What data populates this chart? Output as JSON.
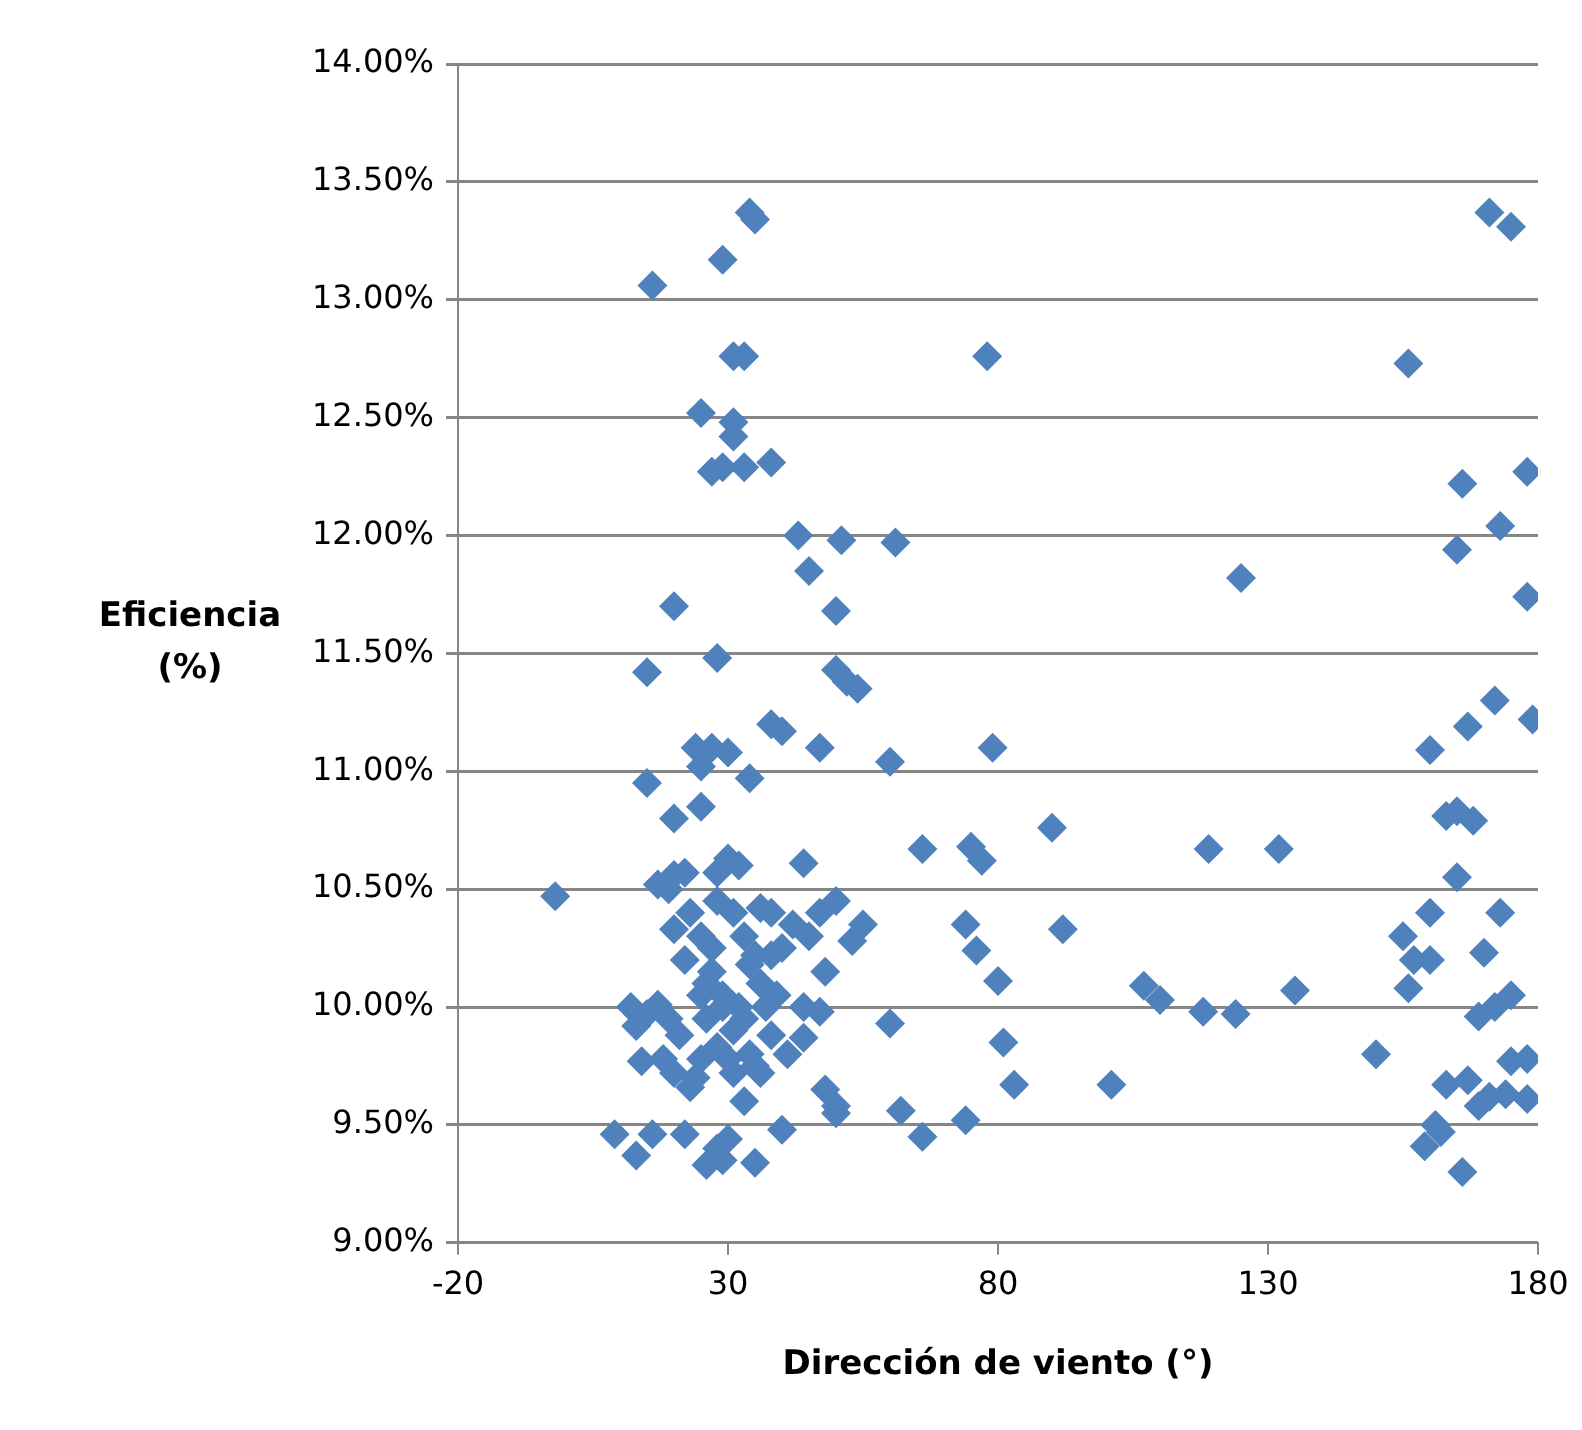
{
  "chart_data": {
    "type": "scatter",
    "xlabel": "Dirección de viento (°)",
    "ylabel": "Eficiencia (%)",
    "xlim": [
      -20,
      180
    ],
    "xticks": [
      -20,
      30,
      80,
      130,
      180
    ],
    "ylim": [
      9,
      14
    ],
    "yticks": [
      {
        "value": 9,
        "label": "9.00%"
      },
      {
        "value": 9.5,
        "label": "9.50%"
      },
      {
        "value": 10,
        "label": "10.00%"
      },
      {
        "value": 10.5,
        "label": "10.50%"
      },
      {
        "value": 11,
        "label": "11.00%"
      },
      {
        "value": 11.5,
        "label": "11.50%"
      },
      {
        "value": 12,
        "label": "12.00%"
      },
      {
        "value": 12.5,
        "label": "12.50%"
      },
      {
        "value": 13,
        "label": "13.00%"
      },
      {
        "value": 13.5,
        "label": "13.50%"
      },
      {
        "value": 14,
        "label": "14.00%"
      }
    ],
    "grid": "y",
    "marker": "diamond",
    "legend": false,
    "series": [
      {
        "color": "#4f81bd",
        "x": [
          78,
          125,
          156,
          171,
          175,
          166,
          178,
          165,
          173,
          178,
          172,
          179,
          167,
          160,
          163,
          165,
          168,
          165,
          160,
          173,
          170,
          160,
          155,
          157,
          156,
          175,
          172,
          169,
          150,
          163,
          167,
          171,
          169,
          175,
          178,
          178,
          174,
          161,
          162,
          159,
          166,
          79,
          60,
          61,
          51,
          45,
          43,
          50,
          50,
          52,
          54,
          47,
          38,
          40,
          66,
          75,
          77,
          74,
          76,
          80,
          90,
          92,
          119,
          132,
          81,
          83,
          60,
          62,
          66,
          74,
          101,
          107,
          110,
          118,
          124,
          135,
          44,
          55,
          53,
          50,
          47,
          45,
          48,
          42,
          40,
          38,
          48,
          50,
          50,
          44,
          40,
          35,
          -2,
          16,
          29,
          34,
          35,
          31,
          33,
          25,
          31,
          31,
          27,
          29,
          33,
          38,
          20,
          15,
          28,
          15,
          27,
          30,
          34,
          24,
          25,
          25,
          20,
          17,
          20,
          22,
          19,
          20,
          22,
          23,
          25,
          26,
          27,
          29,
          28,
          30,
          28,
          32,
          31,
          33,
          34,
          35,
          36,
          36,
          37,
          38,
          39,
          33,
          31,
          30,
          28,
          26,
          25,
          24,
          23,
          20,
          18,
          14,
          13,
          12,
          15,
          17,
          19,
          21,
          25,
          27,
          29,
          32,
          34,
          36,
          38,
          35,
          33,
          31,
          9,
          13,
          16,
          22,
          26,
          28,
          30,
          29,
          44,
          47,
          41
        ],
        "values": [
          12.76,
          11.82,
          12.73,
          13.37,
          13.31,
          12.22,
          12.27,
          11.94,
          12.04,
          11.74,
          11.3,
          11.22,
          11.19,
          11.09,
          10.81,
          10.83,
          10.79,
          10.55,
          10.4,
          10.4,
          10.23,
          10.2,
          10.3,
          10.2,
          10.08,
          10.05,
          10,
          9.96,
          9.8,
          9.67,
          9.69,
          9.62,
          9.58,
          9.77,
          9.78,
          9.61,
          9.63,
          9.5,
          9.47,
          9.41,
          9.3,
          11.1,
          11.04,
          11.97,
          11.98,
          11.85,
          12,
          11.68,
          11.43,
          11.38,
          11.35,
          11.1,
          11.2,
          11.17,
          10.67,
          10.68,
          10.62,
          10.35,
          10.24,
          10.11,
          10.76,
          10.33,
          10.67,
          10.67,
          9.85,
          9.67,
          9.93,
          9.56,
          9.45,
          9.52,
          9.67,
          10.09,
          10.03,
          9.98,
          9.97,
          10.07,
          10.61,
          10.35,
          10.28,
          10.45,
          10.4,
          10.3,
          10.15,
          10.35,
          10.25,
          10.4,
          9.65,
          9.58,
          9.55,
          9.87,
          9.48,
          9.34,
          10.47,
          13.06,
          13.17,
          13.37,
          13.34,
          12.76,
          12.76,
          12.52,
          12.48,
          12.42,
          12.27,
          12.29,
          12.29,
          12.31,
          11.7,
          11.42,
          11.48,
          10.95,
          11.1,
          11.08,
          10.97,
          11.1,
          11.02,
          10.85,
          10.8,
          10.52,
          10.56,
          10.57,
          10.5,
          10.33,
          10.2,
          10.4,
          10.3,
          10.1,
          10.25,
          10,
          10.57,
          10.63,
          10.45,
          10.6,
          10.4,
          10.3,
          10.18,
          10.22,
          10.42,
          10.1,
          10,
          10.22,
          10.05,
          9.95,
          9.9,
          9.78,
          9.83,
          9.95,
          9.78,
          9.7,
          9.66,
          9.72,
          9.78,
          9.77,
          9.92,
          10,
          9.97,
          10.01,
          9.95,
          9.88,
          10.05,
          10.15,
          10.05,
          10,
          9.8,
          9.72,
          9.88,
          9.75,
          9.6,
          9.72,
          9.46,
          9.37,
          9.46,
          9.46,
          9.33,
          9.4,
          9.44,
          9.35,
          10,
          9.98,
          9.8
        ]
      }
    ]
  }
}
